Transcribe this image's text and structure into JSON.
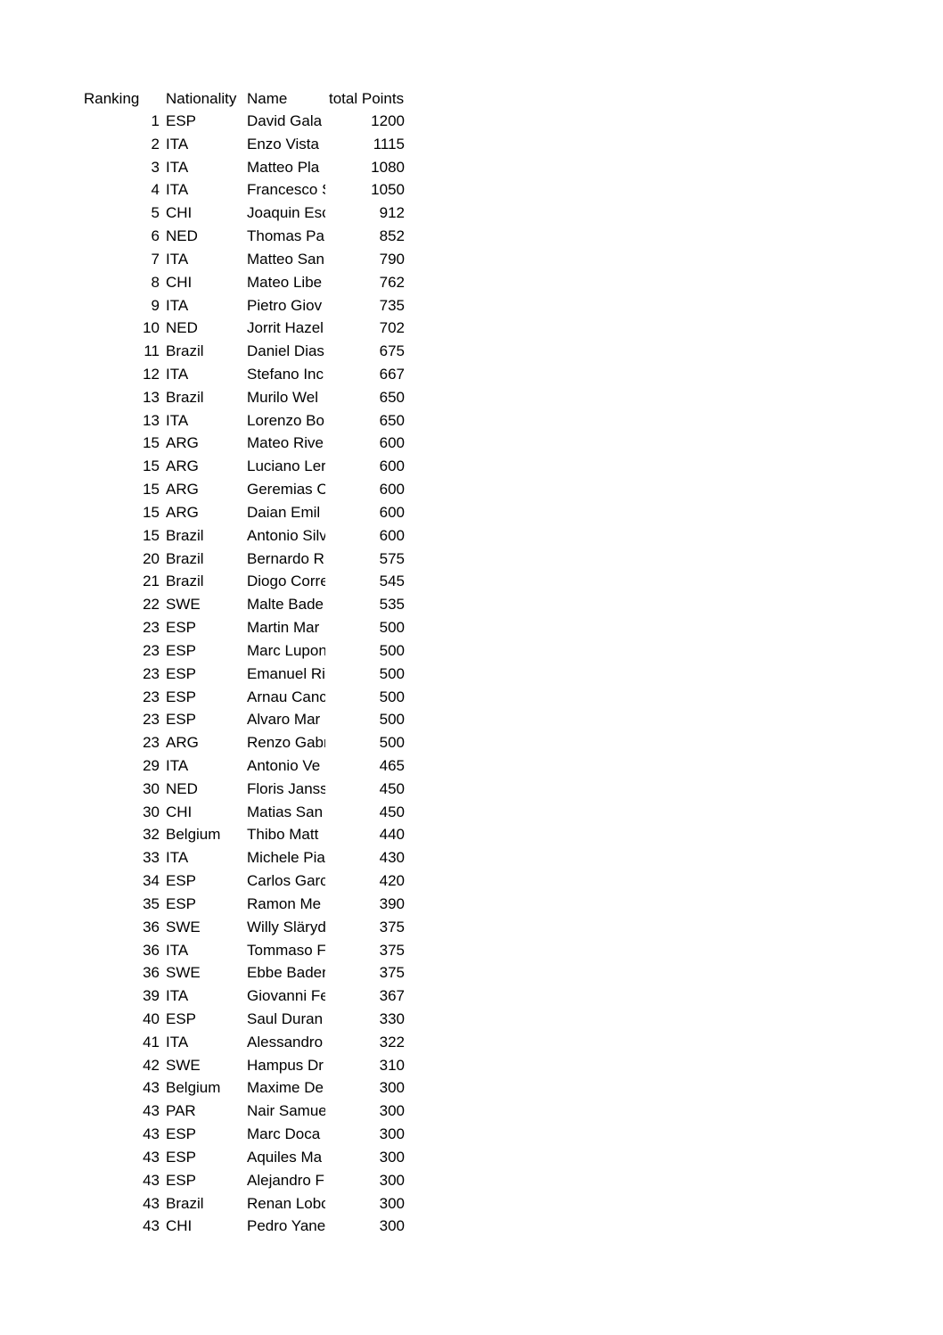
{
  "table": {
    "headers": {
      "ranking": "Ranking",
      "nationality": "Nationality",
      "name": "Name",
      "points": "total Points"
    },
    "rows": [
      {
        "rank": "1",
        "nat": "ESP",
        "name": "David Gala",
        "pts": "1200"
      },
      {
        "rank": "2",
        "nat": "ITA",
        "name": "Enzo Vista",
        "pts": "1115"
      },
      {
        "rank": "3",
        "nat": "ITA",
        "name": "Matteo Pla",
        "pts": "1080"
      },
      {
        "rank": "4",
        "nat": "ITA",
        "name": "Francesco S",
        "pts": "1050"
      },
      {
        "rank": "5",
        "nat": "CHI",
        "name": "Joaquin Esc",
        "pts": "912"
      },
      {
        "rank": "6",
        "nat": "NED",
        "name": "Thomas Pa",
        "pts": "852"
      },
      {
        "rank": "7",
        "nat": "ITA",
        "name": "Matteo San",
        "pts": "790"
      },
      {
        "rank": "8",
        "nat": "CHI",
        "name": "Mateo Libe",
        "pts": "762"
      },
      {
        "rank": "9",
        "nat": "ITA",
        "name": "Pietro Giov",
        "pts": "735"
      },
      {
        "rank": "10",
        "nat": "NED",
        "name": "Jorrit Hazel",
        "pts": "702"
      },
      {
        "rank": "11",
        "nat": "Brazil",
        "name": "Daniel Dias",
        "pts": "675"
      },
      {
        "rank": "12",
        "nat": "ITA",
        "name": "Stefano Inc",
        "pts": "667"
      },
      {
        "rank": "13",
        "nat": "Brazil",
        "name": "Murilo Wel",
        "pts": "650"
      },
      {
        "rank": "13",
        "nat": "ITA",
        "name": "Lorenzo Bo",
        "pts": "650"
      },
      {
        "rank": "15",
        "nat": "ARG",
        "name": "Mateo Rive",
        "pts": "600"
      },
      {
        "rank": "15",
        "nat": "ARG",
        "name": "Luciano Ler",
        "pts": "600"
      },
      {
        "rank": "15",
        "nat": "ARG",
        "name": "Geremias C",
        "pts": "600"
      },
      {
        "rank": "15",
        "nat": "ARG",
        "name": "Daian Emil",
        "pts": "600"
      },
      {
        "rank": "15",
        "nat": "Brazil",
        "name": "Antonio Silv",
        "pts": "600"
      },
      {
        "rank": "20",
        "nat": "Brazil",
        "name": "Bernardo R",
        "pts": "575"
      },
      {
        "rank": "21",
        "nat": "Brazil",
        "name": "Diogo Corre",
        "pts": "545"
      },
      {
        "rank": "22",
        "nat": "SWE",
        "name": "Malte Bade",
        "pts": "535"
      },
      {
        "rank": "23",
        "nat": "ESP",
        "name": "Martin Mar",
        "pts": "500"
      },
      {
        "rank": "23",
        "nat": "ESP",
        "name": "Marc Lupon",
        "pts": "500"
      },
      {
        "rank": "23",
        "nat": "ESP",
        "name": "Emanuel Ri",
        "pts": "500"
      },
      {
        "rank": "23",
        "nat": "ESP",
        "name": "Arnau Canc",
        "pts": "500"
      },
      {
        "rank": "23",
        "nat": "ESP",
        "name": "Alvaro Mar",
        "pts": "500"
      },
      {
        "rank": "23",
        "nat": "ARG",
        "name": "Renzo Gabr",
        "pts": "500"
      },
      {
        "rank": "29",
        "nat": "ITA",
        "name": "Antonio Ve",
        "pts": "465"
      },
      {
        "rank": "30",
        "nat": "NED",
        "name": "Floris Janss",
        "pts": "450"
      },
      {
        "rank": "30",
        "nat": "CHI",
        "name": "Matias San",
        "pts": "450"
      },
      {
        "rank": "32",
        "nat": "Belgium",
        "name": "Thibo Matt",
        "pts": "440"
      },
      {
        "rank": "33",
        "nat": "ITA",
        "name": "Michele Pia",
        "pts": "430"
      },
      {
        "rank": "34",
        "nat": "ESP",
        "name": "Carlos Garc",
        "pts": "420"
      },
      {
        "rank": "35",
        "nat": "ESP",
        "name": "Ramon Me",
        "pts": "390"
      },
      {
        "rank": "36",
        "nat": "SWE",
        "name": "Willy Släryd",
        "pts": "375"
      },
      {
        "rank": "36",
        "nat": "ITA",
        "name": "Tommaso F",
        "pts": "375"
      },
      {
        "rank": "36",
        "nat": "SWE",
        "name": "Ebbe Bader",
        "pts": "375"
      },
      {
        "rank": "39",
        "nat": "ITA",
        "name": "Giovanni Fe",
        "pts": "367"
      },
      {
        "rank": "40",
        "nat": "ESP",
        "name": "Saul Duran",
        "pts": "330"
      },
      {
        "rank": "41",
        "nat": "ITA",
        "name": "Alessandro",
        "pts": "322"
      },
      {
        "rank": "42",
        "nat": "SWE",
        "name": "Hampus Dr",
        "pts": "310"
      },
      {
        "rank": "43",
        "nat": "Belgium",
        "name": "Maxime De",
        "pts": "300"
      },
      {
        "rank": "43",
        "nat": "PAR",
        "name": "Nair Samue",
        "pts": "300"
      },
      {
        "rank": "43",
        "nat": "ESP",
        "name": "Marc Doca",
        "pts": "300"
      },
      {
        "rank": "43",
        "nat": "ESP",
        "name": "Aquiles Ma",
        "pts": "300"
      },
      {
        "rank": "43",
        "nat": "ESP",
        "name": "Alejandro F",
        "pts": "300"
      },
      {
        "rank": "43",
        "nat": "Brazil",
        "name": "Renan Lobo",
        "pts": "300"
      },
      {
        "rank": "43",
        "nat": "CHI",
        "name": "Pedro Yane",
        "pts": "300"
      }
    ]
  }
}
